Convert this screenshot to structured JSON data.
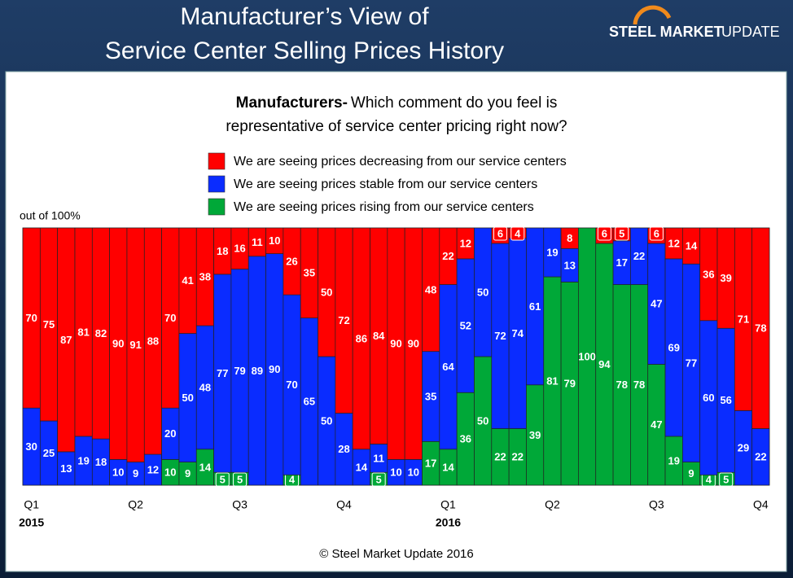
{
  "chart_data": {
    "type": "stacked_bar",
    "title": [
      "Manufacturer’s View of",
      "Service Center Selling Prices History"
    ],
    "logo_bold": "STEEL MARKET",
    "logo_light": "UPDATE",
    "subtitle_bold": "Manufacturers-",
    "subtitle_lines": [
      "Which comment do you feel is",
      "representative of service center pricing right now?"
    ],
    "y_label": "out of 100%",
    "footer": "© Steel Market Update 2016",
    "categories": [
      "Q1",
      null,
      null,
      null,
      null,
      null,
      "Q2",
      null,
      null,
      null,
      null,
      null,
      "Q3",
      null,
      null,
      null,
      null,
      null,
      "Q4",
      null,
      null,
      null,
      null,
      null,
      "Q1",
      null,
      null,
      null,
      null,
      null,
      "Q2",
      null,
      null,
      null,
      null,
      null,
      "Q3",
      null,
      null,
      null,
      null,
      null,
      "Q4"
    ],
    "years": [
      "2015",
      "2016"
    ],
    "ylim": [
      0,
      100
    ],
    "series": [
      {
        "name": "We are seeing prices decreasing from our service centers",
        "color": "#ff0000",
        "values": [
          70,
          75,
          87,
          81,
          82,
          90,
          91,
          88,
          70,
          41,
          38,
          18,
          16,
          11,
          10,
          26,
          35,
          50,
          72,
          86,
          84,
          90,
          90,
          48,
          22,
          12,
          0,
          6,
          4,
          0,
          0,
          8,
          0,
          6,
          5,
          0,
          6,
          12,
          14,
          36,
          39,
          71,
          78
        ]
      },
      {
        "name": "We are seeing prices stable from our service centers",
        "color": "#0a2cff",
        "values": [
          30,
          25,
          13,
          19,
          18,
          10,
          9,
          12,
          20,
          50,
          48,
          77,
          79,
          89,
          90,
          70,
          65,
          50,
          28,
          14,
          11,
          10,
          10,
          35,
          64,
          52,
          50,
          72,
          74,
          61,
          19,
          13,
          0,
          0,
          17,
          22,
          47,
          69,
          77,
          60,
          56,
          29,
          22
        ]
      },
      {
        "name": "We are seeing prices rising from our service centers",
        "color": "#00a838",
        "values": [
          0,
          0,
          0,
          0,
          0,
          0,
          0,
          0,
          10,
          9,
          14,
          5,
          5,
          0,
          0,
          4,
          0,
          0,
          0,
          0,
          5,
          0,
          0,
          17,
          14,
          36,
          50,
          22,
          22,
          39,
          81,
          79,
          100,
          94,
          78,
          78,
          47,
          19,
          9,
          4,
          5,
          0,
          0
        ]
      }
    ]
  }
}
